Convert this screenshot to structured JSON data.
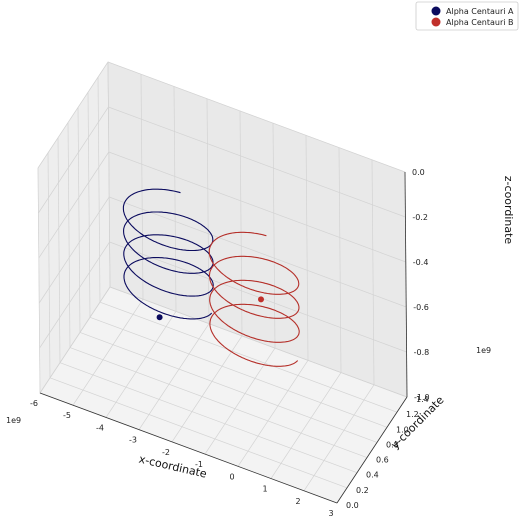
{
  "chart_data": {
    "type": "line",
    "projection": "3d",
    "title": "",
    "xlabel": "x-coordinate",
    "ylabel": "y-coordinate",
    "zlabel": "z-coordinate",
    "xlim": [
      -6,
      3
    ],
    "ylim": [
      0,
      1.4
    ],
    "zlim": [
      -1.0,
      0
    ],
    "x_offset_text": "1e9",
    "y_offset_text": "1e9",
    "x_ticks": [
      "-6",
      "-5",
      "-4",
      "-3",
      "-2",
      "-1",
      "0",
      "1",
      "2",
      "3"
    ],
    "y_ticks": [
      "0.0",
      "0.2",
      "0.4",
      "0.6",
      "0.8",
      "1.0",
      "1.2",
      "1.4"
    ],
    "z_ticks": [
      "0.0",
      "-0.2",
      "-0.4",
      "-0.6",
      "-0.8",
      "-1.0"
    ],
    "grid": true,
    "legend_position": "top-right",
    "series": [
      {
        "name": "Alpha Centauri A",
        "color": "#0b0b5e",
        "marker_color": "#0b0b5e",
        "helix": {
          "center_x": -3.6,
          "center_y": 1.0,
          "radius_x": 1.3,
          "radius_y": 0.25,
          "z_start": -0.4,
          "z_end": -0.78,
          "turns": 3.75
        },
        "final_point": {
          "x": -3.5,
          "y": 0.75,
          "z": -0.78
        }
      },
      {
        "name": "Alpha Centauri B",
        "color": "#b5302a",
        "marker_color": "#c0302b",
        "helix": {
          "center_x": -1.0,
          "center_y": 1.0,
          "radius_x": 1.3,
          "radius_y": 0.25,
          "z_start": -0.45,
          "z_end": -0.85,
          "turns": 3.75
        },
        "final_point": {
          "x": -0.95,
          "y": 1.1,
          "z": -0.68
        }
      }
    ]
  }
}
